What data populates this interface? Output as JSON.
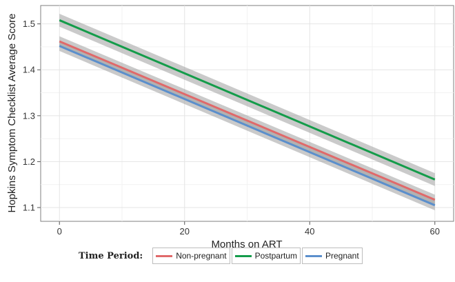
{
  "chart_data": {
    "type": "line",
    "xlabel": "Months on ART",
    "ylabel": "Hopkins Symptom Checklist Average Score",
    "xlim": [
      -3,
      63
    ],
    "ylim": [
      1.07,
      1.54
    ],
    "x_ticks": [
      0,
      20,
      40,
      60
    ],
    "y_ticks": [
      1.1,
      1.2,
      1.3,
      1.4,
      1.5
    ],
    "x_tick_labels": [
      "0",
      "20",
      "40",
      "60"
    ],
    "y_tick_labels": [
      "1.1",
      "1.2",
      "1.3",
      "1.4",
      "1.5"
    ],
    "grid": true,
    "confidence_band": "gray shaded",
    "legend_position": "bottom",
    "legend_title": "Time Period:",
    "series": [
      {
        "name": "Non-pregnant",
        "color": "#e0696a",
        "x": [
          0,
          60
        ],
        "y": [
          1.462,
          1.117
        ],
        "band_halfwidth": 0.011
      },
      {
        "name": "Postpartum",
        "color": "#149c4a",
        "x": [
          0,
          60
        ],
        "y": [
          1.508,
          1.161
        ],
        "band_halfwidth": 0.014
      },
      {
        "name": "Pregnant",
        "color": "#5b8fcc",
        "x": [
          0,
          60
        ],
        "y": [
          1.452,
          1.105
        ],
        "band_halfwidth": 0.011
      }
    ]
  }
}
